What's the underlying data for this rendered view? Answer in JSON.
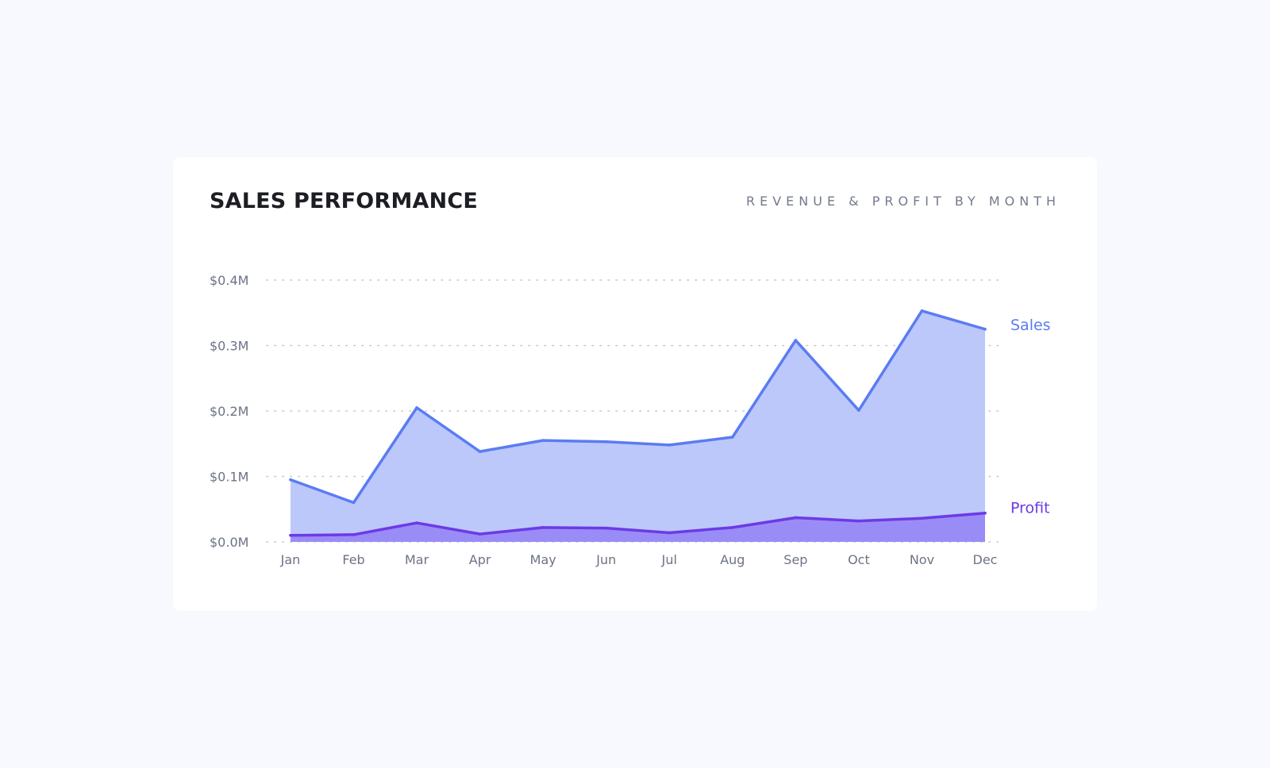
{
  "header": {
    "title": "SALES PERFORMANCE",
    "subtitle": "REVENUE & PROFIT BY MONTH"
  },
  "colors": {
    "background": "#f7f9fe",
    "card": "#ffffff",
    "sales_line": "#5b7cf2",
    "sales_fill": "#bcc8fa",
    "profit_line": "#6d3ae6",
    "profit_fill": "#9a8cf7",
    "grid": "#c2c6d0",
    "tick_text": "#6c7385"
  },
  "chart_data": {
    "type": "area",
    "categories": [
      "Jan",
      "Feb",
      "Mar",
      "Apr",
      "May",
      "Jun",
      "Jul",
      "Aug",
      "Sep",
      "Oct",
      "Nov",
      "Dec"
    ],
    "series": [
      {
        "name": "Sales",
        "values": [
          0.095,
          0.06,
          0.205,
          0.138,
          0.155,
          0.153,
          0.148,
          0.16,
          0.308,
          0.201,
          0.353,
          0.325
        ]
      },
      {
        "name": "Profit",
        "values": [
          0.01,
          0.011,
          0.029,
          0.012,
          0.022,
          0.021,
          0.014,
          0.022,
          0.037,
          0.032,
          0.036,
          0.044
        ]
      }
    ],
    "y_ticks": [
      "$0.0M",
      "$0.1M",
      "$0.2M",
      "$0.3M",
      "$0.4M"
    ],
    "y_tick_values": [
      0,
      0.1,
      0.2,
      0.3,
      0.4
    ],
    "ylim": [
      0,
      0.4
    ],
    "y_unit": "$M",
    "grid": "horizontal dotted",
    "legend": "inline labels at right end of each series"
  }
}
